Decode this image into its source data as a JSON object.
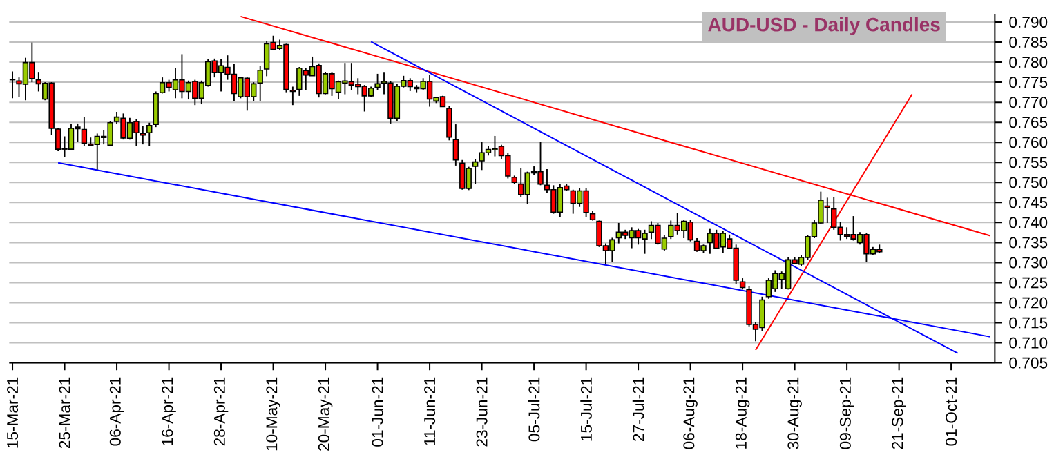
{
  "chart_data": {
    "type": "candlestick",
    "title": "AUD-USD - Daily Candles",
    "categories": [
      "15-Mar-21",
      null,
      null,
      null,
      null,
      null,
      null,
      null,
      "25-Mar-21",
      null,
      null,
      null,
      null,
      null,
      null,
      null,
      "06-Apr-21",
      null,
      null,
      null,
      null,
      null,
      null,
      null,
      "16-Apr-21",
      null,
      null,
      null,
      null,
      null,
      null,
      null,
      "28-Apr-21",
      null,
      null,
      null,
      null,
      null,
      null,
      null,
      "10-May-21",
      null,
      null,
      null,
      null,
      null,
      null,
      null,
      "20-May-21",
      null,
      null,
      null,
      null,
      null,
      null,
      null,
      "01-Jun-21",
      null,
      null,
      null,
      null,
      null,
      null,
      null,
      "11-Jun-21",
      null,
      null,
      null,
      null,
      null,
      null,
      null,
      "23-Jun-21",
      null,
      null,
      null,
      null,
      null,
      null,
      null,
      "05-Jul-21",
      null,
      null,
      null,
      null,
      null,
      null,
      null,
      "15-Jul-21",
      null,
      null,
      null,
      null,
      null,
      null,
      null,
      "27-Jul-21",
      null,
      null,
      null,
      null,
      null,
      null,
      null,
      "06-Aug-21",
      null,
      null,
      null,
      null,
      null,
      null,
      null,
      "18-Aug-21",
      null,
      null,
      null,
      null,
      null,
      null,
      null,
      "30-Aug-21",
      null,
      null,
      null,
      null,
      null,
      null,
      null,
      "09-Sep-21",
      null,
      null,
      null,
      null,
      null,
      null,
      null,
      "21-Sep-21",
      null,
      null,
      null,
      null,
      null,
      null,
      null,
      "01-Oct-21",
      null,
      null,
      null,
      null,
      null,
      null
    ],
    "ohlc": [
      [
        0.7756,
        0.7777,
        0.771,
        0.7757
      ],
      [
        0.7753,
        0.7762,
        0.7714,
        0.7746
      ],
      [
        0.7745,
        0.7811,
        0.7705,
        0.7799
      ],
      [
        0.7799,
        0.7849,
        0.775,
        0.7759
      ],
      [
        0.7756,
        0.7774,
        0.7727,
        0.7746
      ],
      [
        0.7708,
        0.775,
        0.7705,
        0.7747
      ],
      [
        0.7748,
        0.775,
        0.7618,
        0.7635
      ],
      [
        0.7633,
        0.7635,
        0.7578,
        0.7583
      ],
      [
        0.7585,
        0.7615,
        0.7563,
        0.7583
      ],
      [
        0.7583,
        0.7647,
        0.758,
        0.7635
      ],
      [
        0.7634,
        0.7647,
        0.7601,
        0.7638
      ],
      [
        0.7632,
        0.7664,
        0.759,
        0.7598
      ],
      [
        0.7596,
        0.7612,
        0.759,
        0.7593
      ],
      [
        0.7595,
        0.7622,
        0.7532,
        0.7615
      ],
      [
        0.7612,
        0.763,
        0.7595,
        0.7615
      ],
      [
        0.7593,
        0.7653,
        0.7593,
        0.7649
      ],
      [
        0.7652,
        0.7676,
        0.7647,
        0.7663
      ],
      [
        0.766,
        0.7672,
        0.7607,
        0.7611
      ],
      [
        0.761,
        0.7661,
        0.7607,
        0.7649
      ],
      [
        0.7652,
        0.7658,
        0.759,
        0.7624
      ],
      [
        0.7622,
        0.7641,
        0.7595,
        0.7618
      ],
      [
        0.7624,
        0.7649,
        0.759,
        0.7642
      ],
      [
        0.7645,
        0.7727,
        0.7638,
        0.7722
      ],
      [
        0.7724,
        0.7762,
        0.7722,
        0.7749
      ],
      [
        0.7749,
        0.7756,
        0.7727,
        0.7737
      ],
      [
        0.7731,
        0.7785,
        0.771,
        0.7756
      ],
      [
        0.7756,
        0.782,
        0.771,
        0.7727
      ],
      [
        0.7727,
        0.7754,
        0.7707,
        0.7749
      ],
      [
        0.7752,
        0.7756,
        0.7693,
        0.771
      ],
      [
        0.771,
        0.7754,
        0.7695,
        0.7749
      ],
      [
        0.7742,
        0.7808,
        0.7739,
        0.7801
      ],
      [
        0.7803,
        0.7809,
        0.7762,
        0.7774
      ],
      [
        0.7774,
        0.7808,
        0.7727,
        0.7791
      ],
      [
        0.7787,
        0.7817,
        0.7756,
        0.777
      ],
      [
        0.777,
        0.7796,
        0.7702,
        0.7722
      ],
      [
        0.7714,
        0.7764,
        0.771,
        0.7761
      ],
      [
        0.776,
        0.7762,
        0.7679,
        0.7714
      ],
      [
        0.7714,
        0.775,
        0.7702,
        0.7746
      ],
      [
        0.7748,
        0.7791,
        0.7702,
        0.778
      ],
      [
        0.7783,
        0.7852,
        0.7765,
        0.7846
      ],
      [
        0.7849,
        0.7866,
        0.7831,
        0.7832
      ],
      [
        0.7834,
        0.7856,
        0.7831,
        0.7842
      ],
      [
        0.7844,
        0.7846,
        0.7725,
        0.7732
      ],
      [
        0.773,
        0.7739,
        0.7693,
        0.7727
      ],
      [
        0.7732,
        0.7788,
        0.7716,
        0.7785
      ],
      [
        0.7779,
        0.7785,
        0.7731,
        0.7768
      ],
      [
        0.7766,
        0.7814,
        0.7766,
        0.7789
      ],
      [
        0.7792,
        0.7797,
        0.7712,
        0.7722
      ],
      [
        0.7722,
        0.7775,
        0.772,
        0.7771
      ],
      [
        0.7771,
        0.7774,
        0.7716,
        0.7734
      ],
      [
        0.7725,
        0.7754,
        0.7708,
        0.7751
      ],
      [
        0.7748,
        0.7798,
        0.772,
        0.7753
      ],
      [
        0.7751,
        0.7798,
        0.7731,
        0.7743
      ],
      [
        0.7745,
        0.776,
        0.772,
        0.7739
      ],
      [
        0.774,
        0.7743,
        0.7677,
        0.7716
      ],
      [
        0.7716,
        0.7739,
        0.7714,
        0.7735
      ],
      [
        0.7737,
        0.7771,
        0.7731,
        0.7746
      ],
      [
        0.7748,
        0.7774,
        0.772,
        0.7752
      ],
      [
        0.7748,
        0.7752,
        0.7647,
        0.766
      ],
      [
        0.766,
        0.7746,
        0.7653,
        0.774
      ],
      [
        0.774,
        0.7766,
        0.7737,
        0.7754
      ],
      [
        0.7754,
        0.776,
        0.7728,
        0.7739
      ],
      [
        0.7737,
        0.7743,
        0.7725,
        0.7734
      ],
      [
        0.7734,
        0.776,
        0.7731,
        0.7752
      ],
      [
        0.7752,
        0.7769,
        0.7689,
        0.7708
      ],
      [
        0.7703,
        0.7714,
        0.7698,
        0.7712
      ],
      [
        0.7714,
        0.7716,
        0.7688,
        0.7689
      ],
      [
        0.7685,
        0.7691,
        0.7605,
        0.7613
      ],
      [
        0.7607,
        0.7645,
        0.7542,
        0.7556
      ],
      [
        0.7548,
        0.7556,
        0.7482,
        0.7485
      ],
      [
        0.7485,
        0.7539,
        0.7481,
        0.7535
      ],
      [
        0.754,
        0.7559,
        0.7496,
        0.7551
      ],
      [
        0.7554,
        0.7602,
        0.7531,
        0.7574
      ],
      [
        0.7574,
        0.759,
        0.7567,
        0.7582
      ],
      [
        0.7581,
        0.7616,
        0.7565,
        0.7584
      ],
      [
        0.759,
        0.7594,
        0.7559,
        0.7567
      ],
      [
        0.7567,
        0.7574,
        0.751,
        0.7516
      ],
      [
        0.7513,
        0.7517,
        0.7496,
        0.75
      ],
      [
        0.7496,
        0.7536,
        0.7464,
        0.747
      ],
      [
        0.747,
        0.7527,
        0.7447,
        0.7524
      ],
      [
        0.7524,
        0.754,
        0.7519,
        0.7527
      ],
      [
        0.7527,
        0.7602,
        0.7493,
        0.7496
      ],
      [
        0.7493,
        0.7533,
        0.7473,
        0.7482
      ],
      [
        0.7482,
        0.7493,
        0.7422,
        0.7426
      ],
      [
        0.7426,
        0.7496,
        0.7414,
        0.7487
      ],
      [
        0.7491,
        0.7496,
        0.7479,
        0.7482
      ],
      [
        0.7479,
        0.7482,
        0.7422,
        0.7448
      ],
      [
        0.7448,
        0.7485,
        0.7439,
        0.7479
      ],
      [
        0.7479,
        0.7485,
        0.7414,
        0.7425
      ],
      [
        0.7422,
        0.7428,
        0.7405,
        0.7407
      ],
      [
        0.7403,
        0.7405,
        0.7339,
        0.7342
      ],
      [
        0.7342,
        0.7348,
        0.7296,
        0.733
      ],
      [
        0.733,
        0.7362,
        0.7301,
        0.7357
      ],
      [
        0.7362,
        0.7399,
        0.7348,
        0.7376
      ],
      [
        0.7376,
        0.7382,
        0.7359,
        0.7368
      ],
      [
        0.7362,
        0.7388,
        0.7336,
        0.738
      ],
      [
        0.738,
        0.7384,
        0.7345,
        0.7362
      ],
      [
        0.7359,
        0.7382,
        0.7322,
        0.7373
      ],
      [
        0.7376,
        0.7403,
        0.7359,
        0.7393
      ],
      [
        0.7393,
        0.7399,
        0.7345,
        0.7348
      ],
      [
        0.7334,
        0.7368,
        0.733,
        0.7361
      ],
      [
        0.7365,
        0.7405,
        0.7359,
        0.7393
      ],
      [
        0.7393,
        0.7424,
        0.737,
        0.738
      ],
      [
        0.738,
        0.7407,
        0.7361,
        0.7403
      ],
      [
        0.7401,
        0.7407,
        0.7353,
        0.7357
      ],
      [
        0.7353,
        0.7361,
        0.7327,
        0.733
      ],
      [
        0.733,
        0.7345,
        0.7324,
        0.7342
      ],
      [
        0.735,
        0.7384,
        0.7322,
        0.7373
      ],
      [
        0.7373,
        0.7382,
        0.7334,
        0.7336
      ],
      [
        0.7339,
        0.738,
        0.7324,
        0.7373
      ],
      [
        0.7359,
        0.737,
        0.7334,
        0.7336
      ],
      [
        0.7336,
        0.7345,
        0.7247,
        0.7256
      ],
      [
        0.7252,
        0.7261,
        0.7233,
        0.7238
      ],
      [
        0.7233,
        0.7242,
        0.7141,
        0.7146
      ],
      [
        0.7146,
        0.7152,
        0.7104,
        0.7134
      ],
      [
        0.7138,
        0.7215,
        0.7129,
        0.7207
      ],
      [
        0.7215,
        0.7261,
        0.721,
        0.7256
      ],
      [
        0.7235,
        0.7281,
        0.7227,
        0.7273
      ],
      [
        0.7258,
        0.7278,
        0.7235,
        0.7273
      ],
      [
        0.7235,
        0.7313,
        0.7233,
        0.7307
      ],
      [
        0.7307,
        0.7313,
        0.7296,
        0.7298
      ],
      [
        0.7296,
        0.7319,
        0.7292,
        0.7313
      ],
      [
        0.7313,
        0.7368,
        0.7307,
        0.7365
      ],
      [
        0.7365,
        0.7407,
        0.7361,
        0.7399
      ],
      [
        0.7399,
        0.7477,
        0.7396,
        0.7456
      ],
      [
        0.7441,
        0.7462,
        0.7399,
        0.7437
      ],
      [
        0.7434,
        0.7464,
        0.7382,
        0.7388
      ],
      [
        0.7388,
        0.7401,
        0.7355,
        0.737
      ],
      [
        0.737,
        0.7388,
        0.7359,
        0.7366
      ],
      [
        0.737,
        0.7416,
        0.7355,
        0.7359
      ],
      [
        0.735,
        0.7376,
        0.7345,
        0.737
      ],
      [
        0.737,
        0.7373,
        0.7301,
        0.7322
      ],
      [
        0.7322,
        0.7339,
        0.7319,
        0.7333
      ],
      [
        0.7333,
        0.7345,
        0.7324,
        0.7327
      ],
      null,
      null,
      null,
      null,
      null,
      null,
      null,
      null,
      null,
      null,
      null,
      null,
      null,
      null,
      null,
      null,
      null
    ],
    "series": [
      {
        "type": "line",
        "color": "#ff0000",
        "values": [
          null,
          null,
          null,
          null,
          null,
          null,
          null,
          null,
          null,
          null,
          null,
          null,
          null,
          null,
          null,
          null,
          null,
          null,
          null,
          null,
          null,
          null,
          null,
          null,
          null,
          null,
          null,
          null,
          null,
          null,
          null,
          null,
          null,
          null,
          null,
          0.7914,
          null,
          null,
          null,
          null,
          null,
          null,
          null,
          null,
          null,
          null,
          null,
          null,
          null,
          null,
          null,
          null,
          null,
          null,
          null,
          null,
          null,
          null,
          null,
          null,
          null,
          null,
          null,
          null,
          null,
          null,
          null,
          null,
          null,
          null,
          null,
          null,
          null,
          null,
          null,
          null,
          null,
          null,
          null,
          null,
          null,
          null,
          null,
          null,
          null,
          null,
          null,
          null,
          null,
          null,
          null,
          null,
          null,
          null,
          null,
          null,
          null,
          null,
          null,
          null,
          null,
          null,
          null,
          null,
          null,
          null,
          null,
          null,
          null,
          null,
          null,
          null,
          null,
          null,
          null,
          null,
          null,
          null,
          null,
          null,
          null,
          null,
          null,
          null,
          null,
          null,
          null,
          null,
          null,
          null,
          null,
          null,
          null,
          null,
          null,
          null,
          null,
          null,
          null,
          null,
          null,
          null,
          null,
          null,
          null,
          null,
          null,
          null,
          null,
          null,
          0.7367
        ]
      },
      {
        "type": "line",
        "color": "#ff0000",
        "values": [
          null,
          null,
          null,
          null,
          null,
          null,
          null,
          null,
          null,
          null,
          null,
          null,
          null,
          null,
          null,
          null,
          null,
          null,
          null,
          null,
          null,
          null,
          null,
          null,
          null,
          null,
          null,
          null,
          null,
          null,
          null,
          null,
          null,
          null,
          null,
          null,
          null,
          null,
          null,
          null,
          null,
          null,
          null,
          null,
          null,
          null,
          null,
          null,
          null,
          null,
          null,
          null,
          null,
          null,
          null,
          null,
          null,
          null,
          null,
          null,
          null,
          null,
          null,
          null,
          null,
          null,
          null,
          null,
          null,
          null,
          null,
          null,
          null,
          null,
          null,
          null,
          null,
          null,
          null,
          null,
          null,
          null,
          null,
          null,
          null,
          null,
          null,
          null,
          null,
          null,
          null,
          null,
          null,
          null,
          null,
          null,
          null,
          null,
          null,
          null,
          null,
          null,
          null,
          null,
          null,
          null,
          null,
          null,
          null,
          null,
          null,
          null,
          null,
          null,
          0.7082,
          null,
          null,
          null,
          null,
          null,
          null,
          null,
          null,
          null,
          null,
          null,
          null,
          null,
          null,
          null,
          null,
          null,
          null,
          null,
          null,
          null,
          null,
          null,
          0.772,
          null,
          null,
          null,
          null,
          null,
          null,
          null,
          null,
          null,
          null,
          null,
          null
        ]
      },
      {
        "type": "line",
        "color": "#0000ff",
        "values": [
          null,
          null,
          null,
          null,
          null,
          null,
          null,
          null,
          null,
          null,
          null,
          null,
          null,
          null,
          null,
          null,
          null,
          null,
          null,
          null,
          null,
          null,
          null,
          null,
          null,
          null,
          null,
          null,
          null,
          null,
          null,
          null,
          null,
          null,
          null,
          null,
          null,
          null,
          null,
          null,
          null,
          null,
          null,
          null,
          null,
          null,
          null,
          null,
          null,
          null,
          null,
          null,
          null,
          null,
          null,
          0.7851,
          null,
          null,
          null,
          null,
          null,
          null,
          null,
          null,
          null,
          null,
          null,
          null,
          null,
          null,
          null,
          null,
          null,
          null,
          null,
          null,
          null,
          null,
          null,
          null,
          null,
          null,
          null,
          null,
          null,
          null,
          null,
          null,
          null,
          null,
          null,
          null,
          null,
          null,
          null,
          null,
          null,
          null,
          null,
          null,
          null,
          null,
          null,
          null,
          null,
          null,
          null,
          null,
          null,
          null,
          null,
          null,
          null,
          null,
          null,
          null,
          null,
          null,
          null,
          null,
          null,
          null,
          null,
          null,
          null,
          null,
          null,
          null,
          null,
          null,
          null,
          null,
          null,
          null,
          null,
          null,
          null,
          null,
          null,
          null,
          null,
          null,
          null,
          null,
          null,
          0.7074,
          null,
          null,
          null,
          null,
          null
        ]
      },
      {
        "type": "line",
        "color": "#0000ff",
        "values": [
          null,
          null,
          null,
          null,
          null,
          null,
          null,
          0.7549,
          null,
          null,
          null,
          null,
          null,
          null,
          null,
          null,
          null,
          null,
          null,
          null,
          null,
          null,
          null,
          null,
          null,
          null,
          null,
          null,
          null,
          null,
          null,
          null,
          null,
          null,
          null,
          null,
          null,
          null,
          null,
          null,
          null,
          null,
          null,
          null,
          null,
          null,
          null,
          null,
          null,
          null,
          null,
          null,
          null,
          null,
          null,
          null,
          null,
          null,
          null,
          null,
          null,
          null,
          null,
          null,
          null,
          null,
          null,
          null,
          null,
          null,
          null,
          null,
          null,
          null,
          null,
          null,
          null,
          null,
          null,
          null,
          null,
          null,
          null,
          null,
          null,
          null,
          null,
          null,
          null,
          null,
          null,
          null,
          null,
          null,
          null,
          null,
          null,
          null,
          null,
          null,
          null,
          null,
          null,
          null,
          null,
          null,
          null,
          null,
          null,
          null,
          null,
          null,
          null,
          null,
          null,
          null,
          null,
          null,
          null,
          null,
          null,
          null,
          null,
          null,
          null,
          null,
          null,
          null,
          null,
          null,
          null,
          null,
          null,
          null,
          null,
          null,
          null,
          null,
          null,
          null,
          null,
          null,
          null,
          null,
          null,
          null,
          null,
          null,
          null,
          null,
          0.7115
        ]
      }
    ],
    "ylim": [
      0.705,
      0.792
    ],
    "yticks": [
      {
        "value": 0.705,
        "label": "0.705"
      },
      {
        "value": 0.71,
        "label": "0.710"
      },
      {
        "value": 0.715,
        "label": "0.715"
      },
      {
        "value": 0.72,
        "label": "0.720"
      },
      {
        "value": 0.725,
        "label": "0.725"
      },
      {
        "value": 0.73,
        "label": "0.730"
      },
      {
        "value": 0.735,
        "label": "0.735"
      },
      {
        "value": 0.74,
        "label": "0.740"
      },
      {
        "value": 0.745,
        "label": "0.745"
      },
      {
        "value": 0.75,
        "label": "0.750"
      },
      {
        "value": 0.755,
        "label": "0.755"
      },
      {
        "value": 0.76,
        "label": "0.760"
      },
      {
        "value": 0.765,
        "label": "0.765"
      },
      {
        "value": 0.77,
        "label": "0.770"
      },
      {
        "value": 0.775,
        "label": "0.775"
      },
      {
        "value": 0.78,
        "label": "0.780"
      },
      {
        "value": 0.785,
        "label": "0.785"
      },
      {
        "value": 0.79,
        "label": "0.790"
      }
    ],
    "grid": "y"
  }
}
